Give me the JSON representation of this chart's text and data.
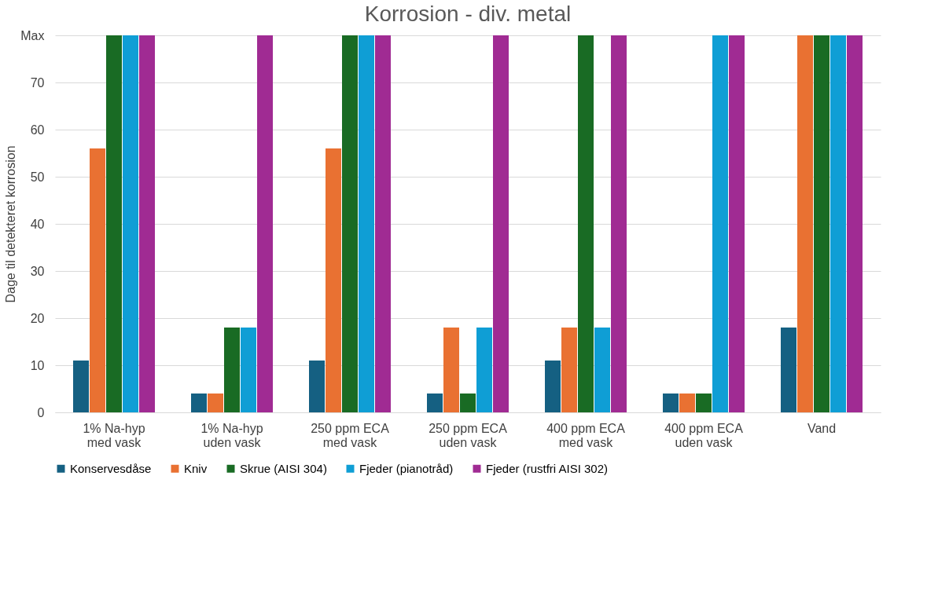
{
  "chart_data": {
    "type": "bar",
    "title": "Korrosion - div. metal",
    "ylabel": "Dage til detekteret korrosion",
    "categories": [
      "1% Na-hyp med vask",
      "1% Na-hyp uden vask",
      "250 ppm ECA med vask",
      "250 ppm ECA uden vask",
      "400 ppm ECA med vask",
      "400 ppm ECA uden vask",
      "Vand"
    ],
    "series": [
      {
        "name": "Konservesdåse",
        "color": "#156082",
        "values": [
          11,
          4,
          11,
          4,
          11,
          4,
          18
        ]
      },
      {
        "name": "Kniv",
        "color": "#e97132",
        "values": [
          56,
          4,
          56,
          18,
          18,
          4,
          80
        ]
      },
      {
        "name": "Skrue (AISI 304)",
        "color": "#196b24",
        "values": [
          80,
          18,
          80,
          4,
          80,
          4,
          80
        ]
      },
      {
        "name": "Fjeder (pianotråd)",
        "color": "#0f9ed5",
        "values": [
          80,
          18,
          80,
          18,
          18,
          80,
          80
        ]
      },
      {
        "name": "Fjeder (rustfri AISI 302)",
        "color": "#a02b93",
        "values": [
          80,
          80,
          80,
          80,
          80,
          80,
          80
        ]
      }
    ],
    "ylim": [
      0,
      80
    ],
    "yticks": [
      0,
      10,
      20,
      30,
      40,
      50,
      60,
      70,
      {
        "value": 80,
        "label": "Max"
      }
    ],
    "grid": "y",
    "legend": "bottom"
  }
}
